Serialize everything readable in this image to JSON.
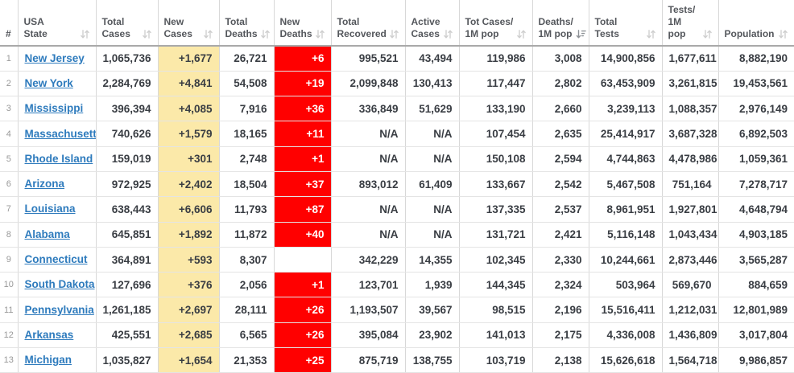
{
  "colors": {
    "link_blue": "#2e7bbd",
    "new_cases_bg": "#fbe9a9",
    "new_deaths_bg": "#ff0000",
    "header_text": "#54575c",
    "number_text": "#393d43"
  },
  "table": {
    "sorted_by": "deaths_per_1m",
    "sort_direction": "desc",
    "columns": [
      {
        "key": "rank",
        "lines": [
          "#"
        ],
        "sortable": false,
        "sorted": false
      },
      {
        "key": "state",
        "lines": [
          "USA",
          "State"
        ],
        "sortable": true,
        "sorted": false
      },
      {
        "key": "total_cases",
        "lines": [
          "Total",
          "Cases"
        ],
        "sortable": true,
        "sorted": false
      },
      {
        "key": "new_cases",
        "lines": [
          "New",
          "Cases"
        ],
        "sortable": true,
        "sorted": false
      },
      {
        "key": "total_deaths",
        "lines": [
          "Total",
          "Deaths"
        ],
        "sortable": true,
        "sorted": false
      },
      {
        "key": "new_deaths",
        "lines": [
          "New",
          "Deaths"
        ],
        "sortable": true,
        "sorted": false
      },
      {
        "key": "total_recovered",
        "lines": [
          "Total",
          "Recovered"
        ],
        "sortable": true,
        "sorted": false
      },
      {
        "key": "active_cases",
        "lines": [
          "Active",
          "Cases"
        ],
        "sortable": true,
        "sorted": false
      },
      {
        "key": "cases_per_1m",
        "lines": [
          "Tot Cases/",
          "1M pop"
        ],
        "sortable": true,
        "sorted": false
      },
      {
        "key": "deaths_per_1m",
        "lines": [
          "Deaths/",
          "1M pop"
        ],
        "sortable": true,
        "sorted": true
      },
      {
        "key": "total_tests",
        "lines": [
          "Total",
          "Tests"
        ],
        "sortable": true,
        "sorted": false
      },
      {
        "key": "tests_per_1m",
        "lines": [
          "Tests/",
          "1M pop"
        ],
        "sortable": true,
        "sorted": false
      },
      {
        "key": "population",
        "lines": [
          "Population"
        ],
        "sortable": true,
        "sorted": false
      }
    ],
    "rows": [
      {
        "rank": "1",
        "state": "New Jersey",
        "total_cases": "1,065,736",
        "new_cases": "+1,677",
        "total_deaths": "26,721",
        "new_deaths": "+6",
        "total_recovered": "995,521",
        "active_cases": "43,494",
        "cases_per_1m": "119,986",
        "deaths_per_1m": "3,008",
        "total_tests": "14,900,856",
        "tests_per_1m": "1,677,611",
        "population": "8,882,190"
      },
      {
        "rank": "2",
        "state": "New York",
        "total_cases": "2,284,769",
        "new_cases": "+4,841",
        "total_deaths": "54,508",
        "new_deaths": "+19",
        "total_recovered": "2,099,848",
        "active_cases": "130,413",
        "cases_per_1m": "117,447",
        "deaths_per_1m": "2,802",
        "total_tests": "63,453,909",
        "tests_per_1m": "3,261,815",
        "population": "19,453,561"
      },
      {
        "rank": "3",
        "state": "Mississippi",
        "total_cases": "396,394",
        "new_cases": "+4,085",
        "total_deaths": "7,916",
        "new_deaths": "+36",
        "total_recovered": "336,849",
        "active_cases": "51,629",
        "cases_per_1m": "133,190",
        "deaths_per_1m": "2,660",
        "total_tests": "3,239,113",
        "tests_per_1m": "1,088,357",
        "population": "2,976,149"
      },
      {
        "rank": "4",
        "state": "Massachusetts",
        "total_cases": "740,626",
        "new_cases": "+1,579",
        "total_deaths": "18,165",
        "new_deaths": "+11",
        "total_recovered": "N/A",
        "active_cases": "N/A",
        "cases_per_1m": "107,454",
        "deaths_per_1m": "2,635",
        "total_tests": "25,414,917",
        "tests_per_1m": "3,687,328",
        "population": "6,892,503"
      },
      {
        "rank": "5",
        "state": "Rhode Island",
        "total_cases": "159,019",
        "new_cases": "+301",
        "total_deaths": "2,748",
        "new_deaths": "+1",
        "total_recovered": "N/A",
        "active_cases": "N/A",
        "cases_per_1m": "150,108",
        "deaths_per_1m": "2,594",
        "total_tests": "4,744,863",
        "tests_per_1m": "4,478,986",
        "population": "1,059,361"
      },
      {
        "rank": "6",
        "state": "Arizona",
        "total_cases": "972,925",
        "new_cases": "+2,402",
        "total_deaths": "18,504",
        "new_deaths": "+37",
        "total_recovered": "893,012",
        "active_cases": "61,409",
        "cases_per_1m": "133,667",
        "deaths_per_1m": "2,542",
        "total_tests": "5,467,508",
        "tests_per_1m": "751,164",
        "population": "7,278,717"
      },
      {
        "rank": "7",
        "state": "Louisiana",
        "total_cases": "638,443",
        "new_cases": "+6,606",
        "total_deaths": "11,793",
        "new_deaths": "+87",
        "total_recovered": "N/A",
        "active_cases": "N/A",
        "cases_per_1m": "137,335",
        "deaths_per_1m": "2,537",
        "total_tests": "8,961,951",
        "tests_per_1m": "1,927,801",
        "population": "4,648,794"
      },
      {
        "rank": "8",
        "state": "Alabama",
        "total_cases": "645,851",
        "new_cases": "+1,892",
        "total_deaths": "11,872",
        "new_deaths": "+40",
        "total_recovered": "N/A",
        "active_cases": "N/A",
        "cases_per_1m": "131,721",
        "deaths_per_1m": "2,421",
        "total_tests": "5,116,148",
        "tests_per_1m": "1,043,434",
        "population": "4,903,185"
      },
      {
        "rank": "9",
        "state": "Connecticut",
        "total_cases": "364,891",
        "new_cases": "+593",
        "total_deaths": "8,307",
        "new_deaths": "",
        "total_recovered": "342,229",
        "active_cases": "14,355",
        "cases_per_1m": "102,345",
        "deaths_per_1m": "2,330",
        "total_tests": "10,244,661",
        "tests_per_1m": "2,873,446",
        "population": "3,565,287"
      },
      {
        "rank": "10",
        "state": "South Dakota",
        "total_cases": "127,696",
        "new_cases": "+376",
        "total_deaths": "2,056",
        "new_deaths": "+1",
        "total_recovered": "123,701",
        "active_cases": "1,939",
        "cases_per_1m": "144,345",
        "deaths_per_1m": "2,324",
        "total_tests": "503,964",
        "tests_per_1m": "569,670",
        "population": "884,659"
      },
      {
        "rank": "11",
        "state": "Pennsylvania",
        "total_cases": "1,261,185",
        "new_cases": "+2,697",
        "total_deaths": "28,111",
        "new_deaths": "+26",
        "total_recovered": "1,193,507",
        "active_cases": "39,567",
        "cases_per_1m": "98,515",
        "deaths_per_1m": "2,196",
        "total_tests": "15,516,411",
        "tests_per_1m": "1,212,031",
        "population": "12,801,989"
      },
      {
        "rank": "12",
        "state": "Arkansas",
        "total_cases": "425,551",
        "new_cases": "+2,685",
        "total_deaths": "6,565",
        "new_deaths": "+26",
        "total_recovered": "395,084",
        "active_cases": "23,902",
        "cases_per_1m": "141,013",
        "deaths_per_1m": "2,175",
        "total_tests": "4,336,008",
        "tests_per_1m": "1,436,809",
        "population": "3,017,804"
      },
      {
        "rank": "13",
        "state": "Michigan",
        "total_cases": "1,035,827",
        "new_cases": "+1,654",
        "total_deaths": "21,353",
        "new_deaths": "+25",
        "total_recovered": "875,719",
        "active_cases": "138,755",
        "cases_per_1m": "103,719",
        "deaths_per_1m": "2,138",
        "total_tests": "15,626,618",
        "tests_per_1m": "1,564,718",
        "population": "9,986,857"
      }
    ]
  }
}
